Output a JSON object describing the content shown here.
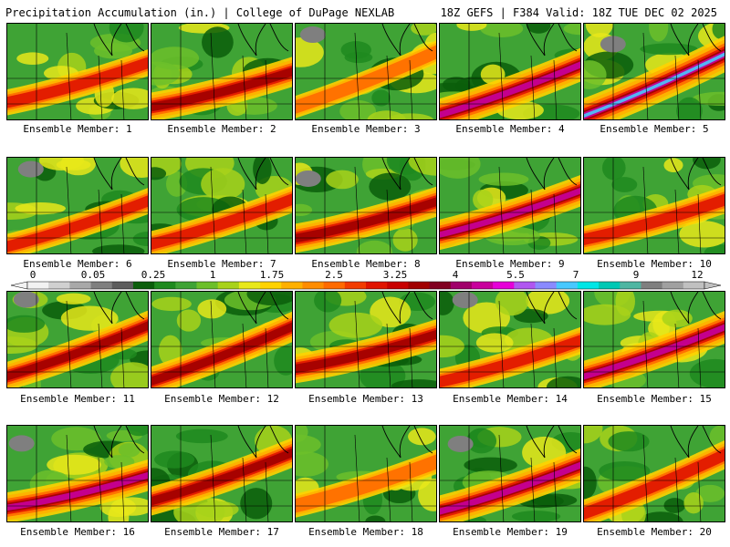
{
  "header": {
    "left": "Precipitation Accumulation (in.) | College of DuPage NEXLAB",
    "right": "18Z GEFS | F384 Valid: 18Z TUE DEC 02 2025"
  },
  "legend": {
    "labels": [
      "0",
      "0.05",
      "0.25",
      "1",
      "1.75",
      "2.5",
      "3.25",
      "4",
      "5.5",
      "7",
      "9",
      "12"
    ],
    "colors": [
      "#f2f2f2",
      "#d0d0d0",
      "#a8a8a8",
      "#7f7f7f",
      "#5c5c5c",
      "#0b5e0b",
      "#1f8a1f",
      "#3fa335",
      "#6cbf2a",
      "#a8d21a",
      "#e8e81a",
      "#ffd200",
      "#ffb000",
      "#ff8c00",
      "#ff6a00",
      "#f23c00",
      "#e01400",
      "#c80000",
      "#a00000",
      "#800020",
      "#a0006a",
      "#c8009c",
      "#e600d8",
      "#b056f0",
      "#8a8aff",
      "#48c8ff",
      "#00e6e6",
      "#00c8b4",
      "#4fb6a2",
      "#7f7f7f",
      "#a0a0a0",
      "#c0c0c0"
    ]
  },
  "members": [
    {
      "caption": "Ensemble Member: 1",
      "intensity": 0.55
    },
    {
      "caption": "Ensemble Member: 2",
      "intensity": 0.75
    },
    {
      "caption": "Ensemble Member: 3",
      "intensity": 0.3
    },
    {
      "caption": "Ensemble Member: 4",
      "intensity": 0.9
    },
    {
      "caption": "Ensemble Member: 5",
      "intensity": 1.0
    },
    {
      "caption": "Ensemble Member: 6",
      "intensity": 0.5
    },
    {
      "caption": "Ensemble Member: 7",
      "intensity": 0.55
    },
    {
      "caption": "Ensemble Member: 8",
      "intensity": 0.75
    },
    {
      "caption": "Ensemble Member: 9",
      "intensity": 0.8
    },
    {
      "caption": "Ensemble Member: 10",
      "intensity": 0.6
    },
    {
      "caption": "Ensemble Member: 11",
      "intensity": 0.7
    },
    {
      "caption": "Ensemble Member: 12",
      "intensity": 0.7
    },
    {
      "caption": "Ensemble Member: 13",
      "intensity": 0.75
    },
    {
      "caption": "Ensemble Member: 14",
      "intensity": 0.55
    },
    {
      "caption": "Ensemble Member: 15",
      "intensity": 0.85
    },
    {
      "caption": "Ensemble Member: 16",
      "intensity": 0.85
    },
    {
      "caption": "Ensemble Member: 17",
      "intensity": 0.7
    },
    {
      "caption": "Ensemble Member: 18",
      "intensity": 0.4
    },
    {
      "caption": "Ensemble Member: 19",
      "intensity": 0.9
    },
    {
      "caption": "Ensemble Member: 20",
      "intensity": 0.6
    }
  ]
}
